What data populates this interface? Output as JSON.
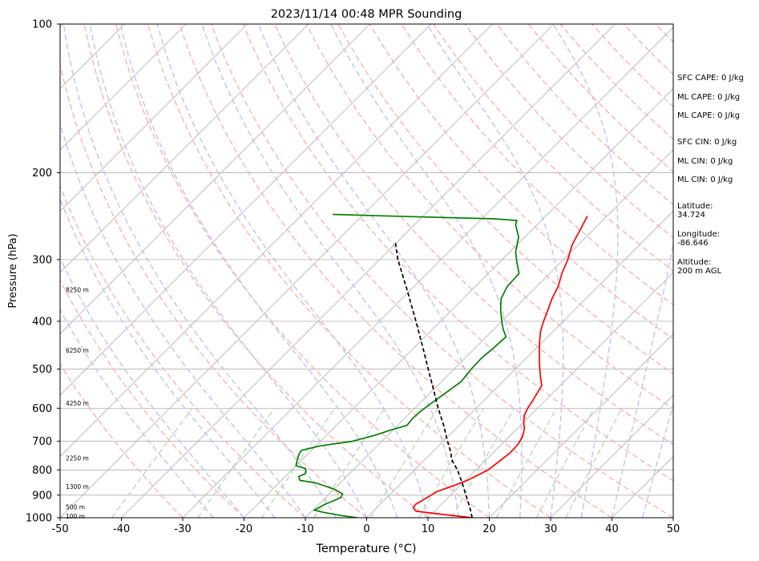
{
  "chart_data": {
    "type": "line",
    "title": "2023/11/14 00:48 MPR Sounding",
    "xlabel": "Temperature (°C)",
    "ylabel": "Pressure (hPa)",
    "xlim": [
      -50,
      50
    ],
    "ylim": [
      1000,
      100
    ],
    "y_scale": "log",
    "x_ticks": [
      -50,
      -40,
      -30,
      -20,
      -10,
      0,
      10,
      20,
      30,
      40,
      50
    ],
    "y_ticks": [
      1000,
      900,
      800,
      700,
      600,
      500,
      400,
      300,
      200,
      100
    ],
    "grid": true,
    "series": [
      {
        "color": "#ff0000",
        "points": [
          [
            1000,
            17.2
          ],
          [
            985,
            12
          ],
          [
            970,
            7
          ],
          [
            955,
            6
          ],
          [
            940,
            5.8
          ],
          [
            925,
            6.2
          ],
          [
            905,
            6.7
          ],
          [
            885,
            7.2
          ],
          [
            860,
            9
          ],
          [
            840,
            10.3
          ],
          [
            820,
            11.2
          ],
          [
            800,
            12
          ],
          [
            770,
            12.4
          ],
          [
            740,
            12.8
          ],
          [
            710,
            12.7
          ],
          [
            685,
            12.2
          ],
          [
            660,
            11.2
          ],
          [
            640,
            10
          ],
          [
            620,
            9
          ],
          [
            600,
            8.4
          ],
          [
            580,
            8
          ],
          [
            560,
            7.5
          ],
          [
            540,
            7
          ],
          [
            520,
            5.5
          ],
          [
            500,
            4
          ],
          [
            480,
            2.5
          ],
          [
            460,
            1
          ],
          [
            440,
            -0.5
          ],
          [
            420,
            -2
          ],
          [
            400,
            -3.2
          ],
          [
            380,
            -4.3
          ],
          [
            360,
            -5.5
          ],
          [
            340,
            -6.5
          ],
          [
            320,
            -8
          ],
          [
            300,
            -9.3
          ],
          [
            280,
            -11
          ],
          [
            260,
            -12.2
          ],
          [
            245,
            -13.2
          ]
        ]
      },
      {
        "color": "#008000",
        "points": [
          [
            1000,
            -1.5
          ],
          [
            990,
            -4.5
          ],
          [
            975,
            -8
          ],
          [
            965,
            -9.8
          ],
          [
            955,
            -9.5
          ],
          [
            940,
            -9
          ],
          [
            925,
            -8.2
          ],
          [
            910,
            -7.5
          ],
          [
            895,
            -7.8
          ],
          [
            875,
            -10
          ],
          [
            850,
            -14
          ],
          [
            840,
            -17
          ],
          [
            825,
            -17.8
          ],
          [
            815,
            -17.2
          ],
          [
            805,
            -17.5
          ],
          [
            795,
            -18
          ],
          [
            785,
            -20
          ],
          [
            765,
            -20.7
          ],
          [
            740,
            -21.5
          ],
          [
            730,
            -21.6
          ],
          [
            715,
            -19.3
          ],
          [
            700,
            -14.8
          ],
          [
            680,
            -12
          ],
          [
            665,
            -10.5
          ],
          [
            650,
            -8.5
          ],
          [
            630,
            -8.7
          ],
          [
            610,
            -8.6
          ],
          [
            590,
            -8.2
          ],
          [
            560,
            -7.5
          ],
          [
            530,
            -6.8
          ],
          [
            500,
            -7.2
          ],
          [
            475,
            -7.3
          ],
          [
            455,
            -7
          ],
          [
            430,
            -6.8
          ],
          [
            415,
            -8.5
          ],
          [
            400,
            -10
          ],
          [
            380,
            -12
          ],
          [
            360,
            -13.8
          ],
          [
            340,
            -14.8
          ],
          [
            320,
            -15
          ],
          [
            305,
            -17
          ],
          [
            290,
            -19
          ],
          [
            270,
            -21
          ],
          [
            255,
            -23.5
          ],
          [
            250,
            -24
          ],
          [
            248,
            -28
          ],
          [
            245,
            -45
          ],
          [
            243,
            -55
          ]
        ]
      },
      {
        "color": "#000000",
        "dash": true,
        "points": [
          [
            1000,
            17.2
          ],
          [
            950,
            15
          ],
          [
            900,
            12.5
          ],
          [
            850,
            9.9
          ],
          [
            800,
            7
          ],
          [
            760,
            4.2
          ],
          [
            745,
            3.5
          ],
          [
            720,
            2
          ],
          [
            700,
            0.7
          ],
          [
            650,
            -2.5
          ],
          [
            600,
            -6.2
          ],
          [
            550,
            -10
          ],
          [
            500,
            -14.2
          ],
          [
            450,
            -18.8
          ],
          [
            400,
            -24
          ],
          [
            350,
            -30
          ],
          [
            300,
            -37
          ],
          [
            275,
            -40.5
          ]
        ]
      }
    ],
    "height_labels": [
      {
        "p": 345,
        "text": "8250 m"
      },
      {
        "p": 458,
        "text": "6250 m"
      },
      {
        "p": 586,
        "text": "4250 m"
      },
      {
        "p": 757,
        "text": "2250 m"
      },
      {
        "p": 865,
        "text": "1300 m"
      },
      {
        "p": 950,
        "text": "500 m"
      },
      {
        "p": 993,
        "text": "100 m"
      }
    ],
    "grid_colors": {
      "isotherm": "#b0b0b0",
      "dry_adiabat": "#ffb0b0",
      "moist_adiabat": "#c0c0ff",
      "mixing_ratio": "#b8dcb8"
    }
  },
  "stats": [
    "SFC CAPE: 0 J/kg",
    "ML CAPE: 0 J/kg",
    "ML CAPE: 0 J/kg",
    "SFC CIN: 0 J/kg",
    "ML CIN: 0 J/kg",
    "ML CIN: 0 J/kg",
    "Latitude:\n34.724",
    "Longitude:\n-86.646",
    "Altitude:\n200 m AGL"
  ]
}
